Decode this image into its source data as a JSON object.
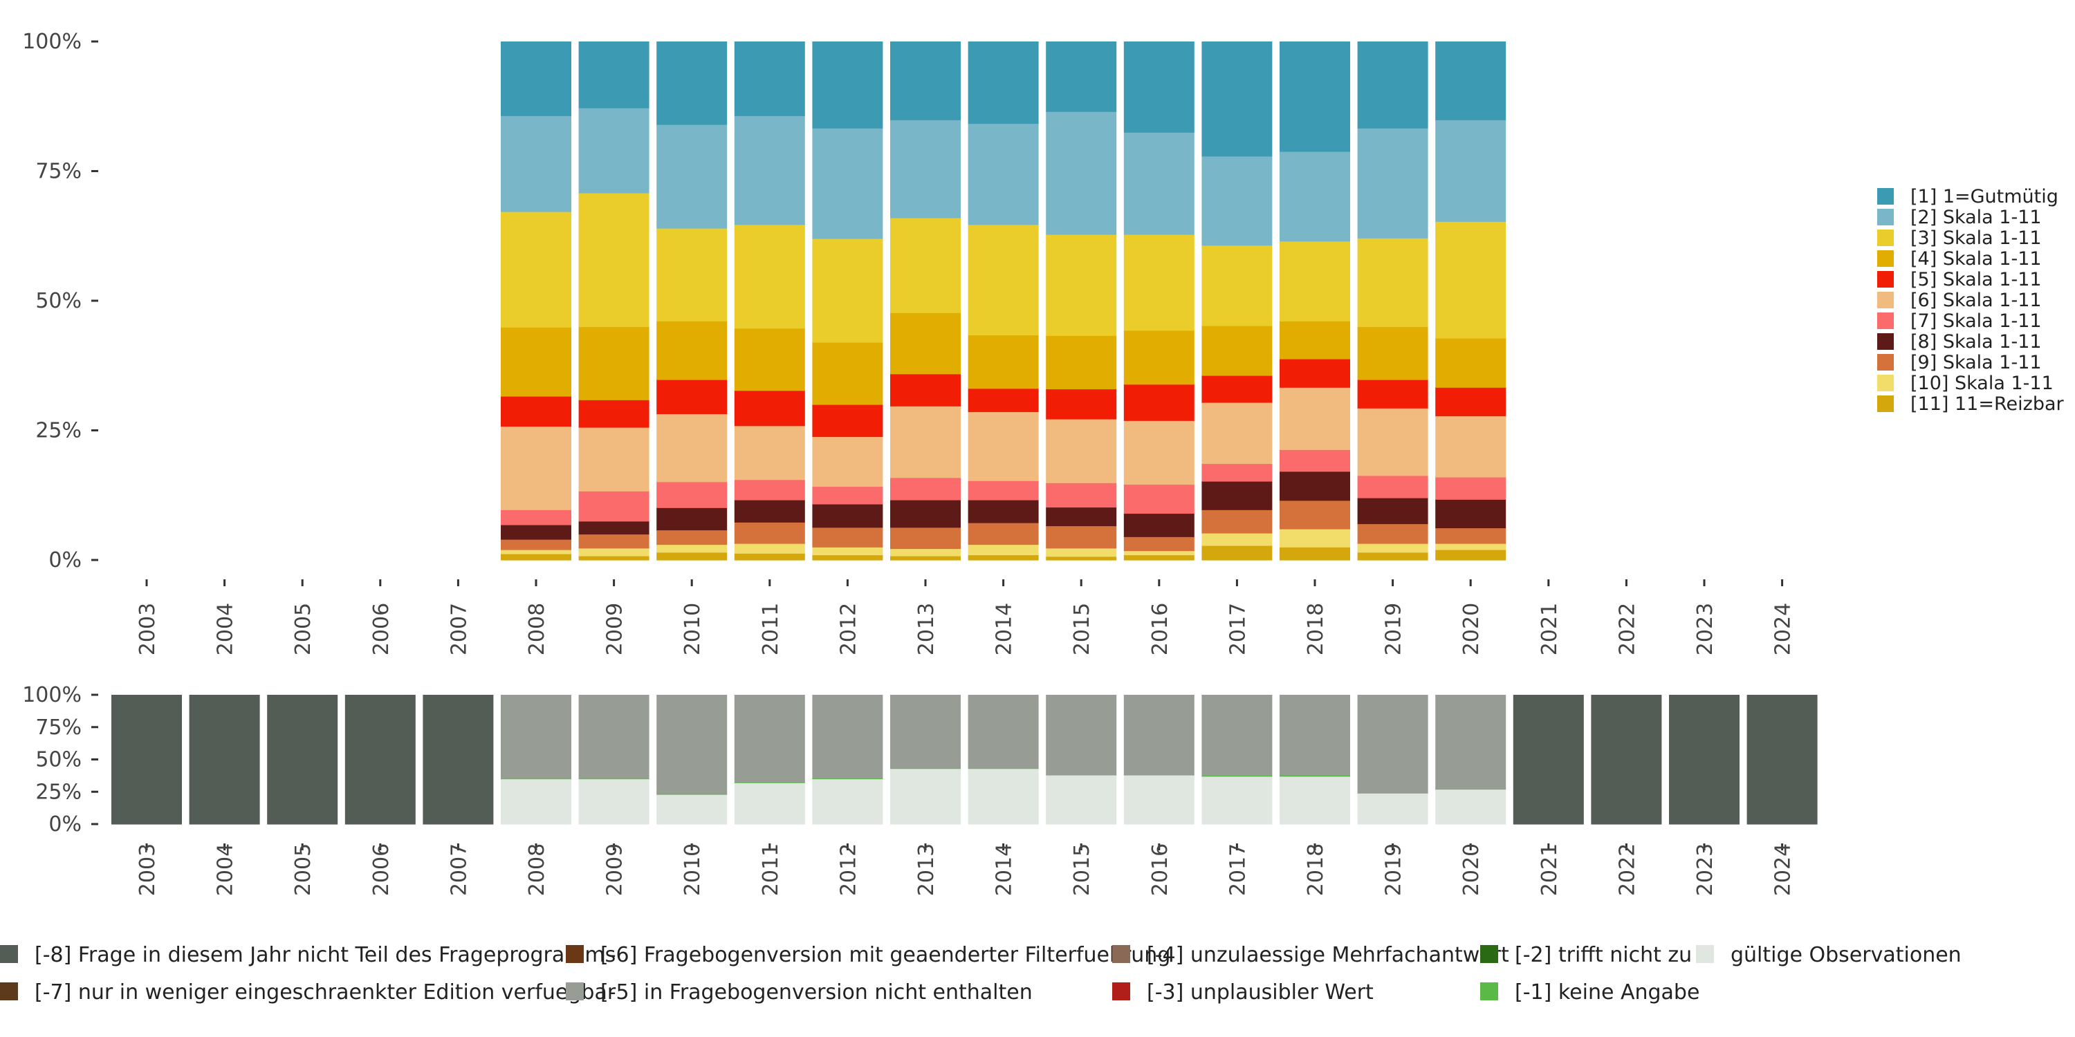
{
  "chart_data": [
    {
      "type": "bar",
      "stacked": true,
      "percent": true,
      "title": "",
      "xlabel": "",
      "ylabel": "",
      "ylim": [
        0,
        100
      ],
      "y_ticks": [
        "0%",
        "25%",
        "50%",
        "75%",
        "100%"
      ],
      "categories": [
        "2003",
        "2004",
        "2005",
        "2006",
        "2007",
        "2008",
        "2009",
        "2010",
        "2011",
        "2012",
        "2013",
        "2014",
        "2015",
        "2016",
        "2017",
        "2018",
        "2019",
        "2020",
        "2021",
        "2022",
        "2023",
        "2024"
      ],
      "legend_position": "right",
      "series": [
        {
          "name": "[11] 11=Reizbar",
          "color": "#d4a80c",
          "values": [
            null,
            null,
            null,
            null,
            null,
            1.2,
            0.8,
            1.5,
            1.3,
            1.0,
            0.8,
            1.0,
            0.7,
            1.0,
            2.8,
            2.5,
            1.5,
            2.0,
            null,
            null,
            null,
            null
          ]
        },
        {
          "name": "[10] Skala 1-11",
          "color": "#f2dc6a",
          "values": [
            null,
            null,
            null,
            null,
            null,
            0.8,
            1.5,
            1.5,
            1.9,
            1.5,
            1.4,
            2.0,
            1.6,
            0.8,
            2.4,
            3.5,
            1.7,
            1.2,
            null,
            null,
            null,
            null
          ]
        },
        {
          "name": "[9] Skala 1-11",
          "color": "#d5713a",
          "values": [
            null,
            null,
            null,
            null,
            null,
            2.0,
            2.7,
            2.8,
            4.1,
            3.8,
            4.1,
            4.2,
            4.3,
            2.7,
            4.5,
            5.5,
            3.8,
            3.0,
            null,
            null,
            null,
            null
          ]
        },
        {
          "name": "[8] Skala 1-11",
          "color": "#5d1a17",
          "values": [
            null,
            null,
            null,
            null,
            null,
            2.8,
            2.5,
            4.3,
            4.3,
            4.5,
            5.3,
            4.4,
            3.6,
            4.5,
            5.5,
            5.6,
            5.0,
            5.5,
            null,
            null,
            null,
            null
          ]
        },
        {
          "name": "[7] Skala 1-11",
          "color": "#fb6b6b",
          "values": [
            null,
            null,
            null,
            null,
            null,
            2.9,
            5.8,
            5.0,
            3.9,
            3.4,
            4.3,
            3.7,
            4.7,
            5.6,
            3.4,
            4.2,
            4.3,
            4.3,
            null,
            null,
            null,
            null
          ]
        },
        {
          "name": "[6] Skala 1-11",
          "color": "#f1bb80",
          "values": [
            null,
            null,
            null,
            null,
            null,
            16.1,
            12.3,
            13.1,
            10.4,
            9.6,
            13.8,
            13.3,
            12.3,
            12.3,
            11.8,
            12.0,
            13.0,
            11.8,
            null,
            null,
            null,
            null
          ]
        },
        {
          "name": "[5] Skala 1-11",
          "color": "#f21d05",
          "values": [
            null,
            null,
            null,
            null,
            null,
            5.8,
            5.3,
            6.6,
            6.8,
            6.2,
            6.2,
            4.5,
            5.8,
            7.0,
            5.2,
            5.5,
            5.5,
            5.5,
            null,
            null,
            null,
            null
          ]
        },
        {
          "name": "[4] Skala 1-11",
          "color": "#e1ad00",
          "values": [
            null,
            null,
            null,
            null,
            null,
            13.3,
            14.1,
            11.3,
            12.0,
            12.0,
            11.8,
            10.3,
            10.3,
            10.4,
            9.6,
            7.3,
            10.2,
            9.5,
            null,
            null,
            null,
            null
          ]
        },
        {
          "name": "[3] Skala 1-11",
          "color": "#eacd2b",
          "values": [
            null,
            null,
            null,
            null,
            null,
            22.3,
            25.8,
            17.9,
            20.0,
            20.0,
            18.3,
            21.3,
            19.5,
            18.5,
            15.5,
            15.4,
            17.1,
            22.5,
            null,
            null,
            null,
            null
          ]
        },
        {
          "name": "[2] Skala 1-11",
          "color": "#79b7c8",
          "values": [
            null,
            null,
            null,
            null,
            null,
            18.5,
            16.4,
            20.0,
            21.0,
            21.3,
            18.9,
            19.5,
            23.7,
            19.7,
            17.2,
            17.3,
            21.2,
            19.6,
            null,
            null,
            null,
            null
          ]
        },
        {
          "name": "[1] 1=Gutmütig",
          "color": "#3c9ab2",
          "values": [
            null,
            null,
            null,
            null,
            null,
            14.3,
            12.8,
            16.0,
            14.3,
            16.7,
            15.1,
            15.8,
            13.5,
            17.5,
            22.1,
            21.2,
            16.7,
            15.1,
            null,
            null,
            null,
            null
          ]
        }
      ]
    },
    {
      "type": "bar",
      "stacked": true,
      "percent": true,
      "title": "",
      "xlabel": "",
      "ylabel": "",
      "ylim": [
        0,
        100
      ],
      "y_ticks": [
        "0%",
        "25%",
        "50%",
        "75%",
        "100%"
      ],
      "categories": [
        "2003",
        "2004",
        "2005",
        "2006",
        "2007",
        "2008",
        "2009",
        "2010",
        "2011",
        "2012",
        "2013",
        "2014",
        "2015",
        "2016",
        "2017",
        "2018",
        "2019",
        "2020",
        "2021",
        "2022",
        "2023",
        "2024"
      ],
      "legend_position": "bottom",
      "series": [
        {
          "name": "gültige Observationen",
          "color": "#e0e6e0",
          "values": [
            0,
            0,
            0,
            0,
            0,
            35,
            35,
            23,
            32,
            35,
            43,
            43,
            38,
            38,
            37,
            37,
            24,
            27,
            0,
            0,
            0,
            0
          ]
        },
        {
          "name": "[-1] keine Angabe",
          "color": "#5ab947",
          "values": [
            0,
            0,
            0,
            0,
            0,
            0.3,
            0.3,
            0.5,
            0.6,
            0.6,
            0.5,
            0.3,
            0.3,
            0.3,
            0.8,
            1.0,
            0.4,
            0.3,
            0,
            0,
            0,
            0
          ]
        },
        {
          "name": "[-5] in Fragebogenversion nicht enthalten",
          "color": "#979c94",
          "values": [
            0,
            0,
            0,
            0,
            0,
            64.7,
            64.7,
            76.5,
            67.4,
            64.4,
            56.5,
            56.7,
            61.7,
            61.7,
            62.2,
            62.0,
            75.6,
            72.7,
            0,
            0,
            0,
            0
          ]
        },
        {
          "name": "[-8] Frage in diesem Jahr nicht Teil des Frageprogramms",
          "color": "#545c56",
          "values": [
            100,
            100,
            100,
            100,
            100,
            0,
            0,
            0,
            0,
            0,
            0,
            0,
            0,
            0,
            0,
            0,
            0,
            0,
            100,
            100,
            100,
            100
          ]
        }
      ]
    }
  ],
  "bottom_legend": [
    {
      "label": "[-8] Frage in diesem Jahr nicht Teil des Frageprogramms",
      "color": "#545c56"
    },
    {
      "label": "[-7] nur in weniger eingeschraenkter Edition verfuegbar",
      "color": "#5e3a1c"
    },
    {
      "label": "[-6] Fragebogenversion mit geaenderter Filterfuehrung",
      "color": "#6b3816"
    },
    {
      "label": "[-5] in Fragebogenversion nicht enthalten",
      "color": "#979c94"
    },
    {
      "label": "[-4] unzulaessige Mehrfachantwort",
      "color": "#8a6a56"
    },
    {
      "label": "[-3] unplausibler Wert",
      "color": "#b11f1a"
    },
    {
      "label": "[-2] trifft nicht zu",
      "color": "#2a6a14"
    },
    {
      "label": "[-1] keine Angabe",
      "color": "#5ab947"
    },
    {
      "label": "gültige Observationen",
      "color": "#e0e6e0"
    }
  ]
}
